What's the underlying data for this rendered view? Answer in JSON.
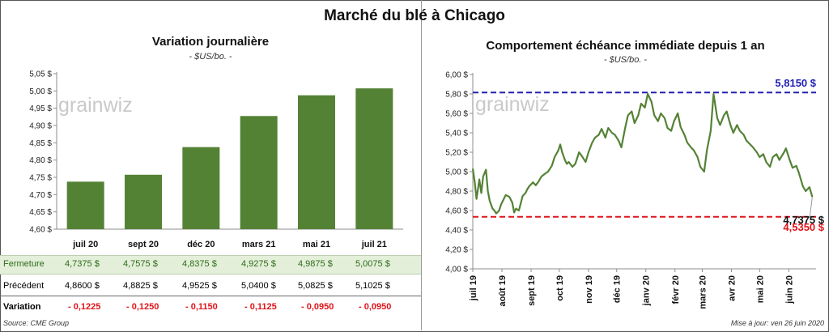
{
  "header": {
    "title": "Marché du blé à Chicago"
  },
  "left": {
    "title": "Variation journalière",
    "unit": "- $US/bo. -",
    "watermark": "grainwiz",
    "y_ticks": [
      "5,05 $",
      "5,00 $",
      "4,95 $",
      "4,90 $",
      "4,85 $",
      "4,80 $",
      "4,75 $",
      "4,70 $",
      "4,65 $",
      "4,60 $"
    ],
    "table": {
      "fermeture_label": "Fermeture",
      "fermeture": [
        "4,7375  $",
        "4,7575  $",
        "4,8375  $",
        "4,9275  $",
        "4,9875  $",
        "5,0075  $"
      ],
      "precedent_label": "Précédent",
      "precedent": [
        "4,8600  $",
        "4,8825  $",
        "4,9525  $",
        "5,0400  $",
        "5,0825  $",
        "5,1025  $"
      ],
      "variation_label": "Variation",
      "variation": [
        "- 0,1225",
        "- 0,1250",
        "- 0,1150",
        "- 0,1125",
        "- 0,0950",
        "- 0,0950"
      ]
    },
    "source": "Source: CME Group"
  },
  "right": {
    "title": "Comportement  échéance immédiate depuis 1 an",
    "unit": "- $US/bo. -",
    "watermark": "grainwiz",
    "y_ticks": [
      "6,00 $",
      "5,80 $",
      "5,60 $",
      "5,40 $",
      "5,20 $",
      "5,00 $",
      "4,80 $",
      "4,60 $",
      "4,40 $",
      "4,20 $",
      "4,00 $"
    ],
    "x_ticks": [
      "juil 19",
      "août 19",
      "sept 19",
      "oct 19",
      "nov 19",
      "déc 19",
      "janv 20",
      "févr 20",
      "mars 20",
      "avr 20",
      "mai 20",
      "juin 20"
    ],
    "high_label": "5,8150 $",
    "low_label": "4,5350 $",
    "last_label": "4,7375 $",
    "updated": "Mise à jour: ven 26 juin 2020"
  },
  "colors": {
    "bar": "#548235",
    "line": "#548235",
    "high": "#1f1fb4",
    "low": "#e0141a"
  },
  "chart_data": [
    {
      "type": "bar",
      "title": "Variation journalière",
      "categories": [
        "juil 20",
        "sept 20",
        "déc 20",
        "mars 21",
        "mai 21",
        "juil 21"
      ],
      "values": [
        4.7375,
        4.7575,
        4.8375,
        4.9275,
        4.9875,
        5.0075
      ],
      "ylim": [
        4.6,
        5.05
      ],
      "grid": false
    },
    {
      "type": "line",
      "title": "Comportement  échéance immédiate depuis 1 an",
      "x": [
        "2019-07-01",
        "2019-07-03",
        "2019-07-05",
        "2019-07-08",
        "2019-07-10",
        "2019-07-12",
        "2019-07-15",
        "2019-07-17",
        "2019-07-19",
        "2019-07-22",
        "2019-07-24",
        "2019-07-26",
        "2019-07-29",
        "2019-07-31",
        "2019-08-05",
        "2019-08-09",
        "2019-08-12",
        "2019-08-14",
        "2019-08-16",
        "2019-08-19",
        "2019-08-23",
        "2019-08-26",
        "2019-08-28",
        "2019-08-30",
        "2019-09-03",
        "2019-09-06",
        "2019-09-09",
        "2019-09-12",
        "2019-09-16",
        "2019-09-19",
        "2019-09-23",
        "2019-09-26",
        "2019-09-30",
        "2019-10-02",
        "2019-10-04",
        "2019-10-07",
        "2019-10-09",
        "2019-10-11",
        "2019-10-15",
        "2019-10-18",
        "2019-10-22",
        "2019-10-25",
        "2019-10-29",
        "2019-11-01",
        "2019-11-05",
        "2019-11-08",
        "2019-11-12",
        "2019-11-15",
        "2019-11-19",
        "2019-11-22",
        "2019-11-26",
        "2019-11-29",
        "2019-12-03",
        "2019-12-06",
        "2019-12-10",
        "2019-12-13",
        "2019-12-17",
        "2019-12-20",
        "2019-12-24",
        "2019-12-27",
        "2019-12-31",
        "2020-01-03",
        "2020-01-07",
        "2020-01-10",
        "2020-01-14",
        "2020-01-17",
        "2020-01-21",
        "2020-01-24",
        "2020-01-28",
        "2020-01-31",
        "2020-02-04",
        "2020-02-07",
        "2020-02-11",
        "2020-02-14",
        "2020-02-18",
        "2020-02-21",
        "2020-02-25",
        "2020-02-28",
        "2020-03-03",
        "2020-03-06",
        "2020-03-10",
        "2020-03-13",
        "2020-03-17",
        "2020-03-20",
        "2020-03-24",
        "2020-03-27",
        "2020-03-31",
        "2020-04-03",
        "2020-04-07",
        "2020-04-10",
        "2020-04-14",
        "2020-04-17",
        "2020-04-21",
        "2020-04-24",
        "2020-04-28",
        "2020-05-01",
        "2020-05-05",
        "2020-05-08",
        "2020-05-12",
        "2020-05-15",
        "2020-05-19",
        "2020-05-22",
        "2020-05-27",
        "2020-05-29",
        "2020-06-02",
        "2020-06-05",
        "2020-06-09",
        "2020-06-12",
        "2020-06-16",
        "2020-06-19",
        "2020-06-23",
        "2020-06-26"
      ],
      "y": [
        5.03,
        4.9,
        4.72,
        4.92,
        4.78,
        4.95,
        5.02,
        4.8,
        4.7,
        4.62,
        4.6,
        4.57,
        4.6,
        4.66,
        4.76,
        4.74,
        4.68,
        4.58,
        4.62,
        4.6,
        4.75,
        4.78,
        4.82,
        4.85,
        4.89,
        4.86,
        4.9,
        4.95,
        4.98,
        5.0,
        5.06,
        5.15,
        5.22,
        5.28,
        5.2,
        5.12,
        5.08,
        5.1,
        5.05,
        5.08,
        5.2,
        5.16,
        5.1,
        5.2,
        5.3,
        5.35,
        5.38,
        5.44,
        5.35,
        5.45,
        5.4,
        5.38,
        5.32,
        5.25,
        5.45,
        5.58,
        5.62,
        5.5,
        5.58,
        5.7,
        5.66,
        5.8,
        5.72,
        5.58,
        5.52,
        5.6,
        5.55,
        5.45,
        5.42,
        5.52,
        5.6,
        5.46,
        5.38,
        5.3,
        5.25,
        5.22,
        5.15,
        5.05,
        5.0,
        5.22,
        5.42,
        5.8,
        5.55,
        5.48,
        5.58,
        5.62,
        5.48,
        5.4,
        5.48,
        5.42,
        5.38,
        5.32,
        5.28,
        5.25,
        5.2,
        5.15,
        5.18,
        5.1,
        5.05,
        5.15,
        5.18,
        5.12,
        5.2,
        5.24,
        5.12,
        5.04,
        5.06,
        4.98,
        4.85,
        4.8,
        4.84,
        4.74
      ],
      "ylim": [
        4.0,
        6.0
      ],
      "annotations": {
        "high": 5.815,
        "low": 4.535,
        "last": 4.7375
      },
      "grid": false
    }
  ]
}
